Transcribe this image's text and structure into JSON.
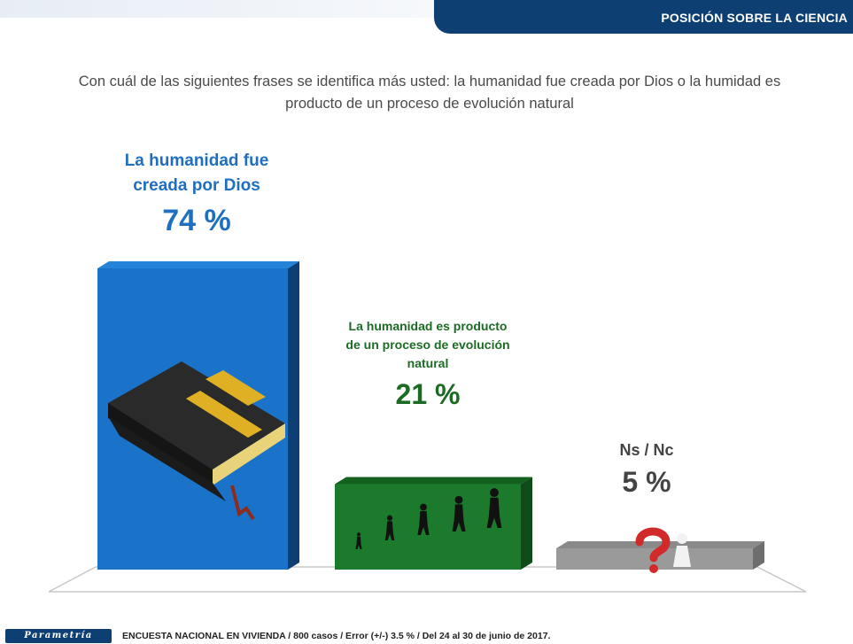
{
  "header": {
    "title": "POSICIÓN SOBRE LA CIENCIA"
  },
  "question": "Con cuál de las siguientes frases se identifica más usted: la humanidad fue creada por Dios o la humidad es producto de un proceso de evolución natural",
  "chart_data": {
    "type": "bar",
    "categories": [
      "La humanidad fue creada por Dios",
      "La humanidad es producto de un proceso de evolución natural",
      "Ns / Nc"
    ],
    "values": [
      74,
      21,
      5
    ],
    "value_labels": [
      "74 %",
      "21 %",
      "5 %"
    ],
    "colors": [
      "#1a73c9",
      "#1c7a2c",
      "#9a9a9a"
    ],
    "side_colors": [
      "#0d3f73",
      "#0e4b19",
      "#6e6e6e"
    ],
    "top_colors": [
      "#2684d8",
      "#13601f",
      "#8a8a8a"
    ],
    "label_colors": [
      "#1f6fc0",
      "#1c6b25",
      "#444444"
    ],
    "icons": [
      "bible-with-cross-icon",
      "human-evolution-silhouettes-icon",
      "question-mark-figure-icon"
    ],
    "ylim": [
      0,
      74
    ]
  },
  "footer": {
    "logo_text": "Parametría",
    "note": "ENCUESTA NACIONAL EN VIVIENDA / 800 casos / Error (+/-) 3.5 % / Del 24 al 30 de junio de 2017."
  }
}
